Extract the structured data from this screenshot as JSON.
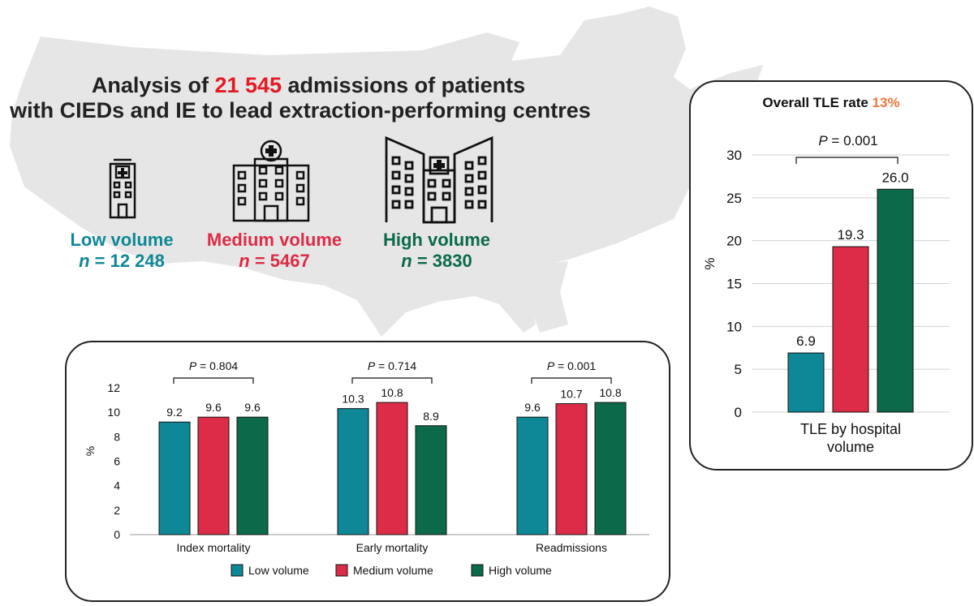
{
  "headline": {
    "line1_prefix": "Analysis of ",
    "line1_number": "21 545",
    "line1_suffix": " admissions of patients",
    "line2": "with CIEDs and IE to lead extraction-performing centres"
  },
  "groups": [
    {
      "label": "Low volume",
      "n_prefix": "n",
      "n_value": " = 12 248"
    },
    {
      "label": "Medium volume",
      "n_prefix": "n",
      "n_value": " = 5467"
    },
    {
      "label": "High volume",
      "n_prefix": "n",
      "n_value": " = 3830"
    }
  ],
  "colors": {
    "low": "#0e8896",
    "medium": "#dd2c47",
    "high": "#0c6a4b",
    "accent_red": "#e21b23",
    "accent_orange": "#e9783a",
    "map": "#e6e6e6"
  },
  "tle_panel": {
    "title_prefix": "Overall TLE rate ",
    "title_value": "13%"
  },
  "chart_data": [
    {
      "type": "bar",
      "title": "Overall TLE rate 13%",
      "categories": [
        "TLE by hospital volume"
      ],
      "category_lines": [
        "TLE by hospital",
        "volume"
      ],
      "series": [
        {
          "name": "Low volume",
          "values": [
            6.9
          ]
        },
        {
          "name": "Medium volume",
          "values": [
            19.3
          ]
        },
        {
          "name": "High volume",
          "values": [
            26.0
          ]
        }
      ],
      "value_labels": [
        "6.9",
        "19.3",
        "26.0"
      ],
      "ylabel": "%",
      "ylim": [
        0,
        30
      ],
      "yticks": [
        0,
        5,
        10,
        15,
        20,
        25,
        30
      ],
      "grid": true,
      "annotations": [
        {
          "text_italic": "P",
          "text": " = 0.001"
        }
      ]
    },
    {
      "type": "bar",
      "categories": [
        "Index mortality",
        "Early mortality",
        "Readmissions"
      ],
      "series": [
        {
          "name": "Low volume",
          "values": [
            9.2,
            10.3,
            9.6
          ]
        },
        {
          "name": "Medium volume",
          "values": [
            9.6,
            10.8,
            10.7
          ]
        },
        {
          "name": "High volume",
          "values": [
            9.6,
            8.9,
            10.8
          ]
        }
      ],
      "value_labels": [
        [
          "9.2",
          "10.3",
          "9.6"
        ],
        [
          "9.6",
          "10.8",
          "10.7"
        ],
        [
          "9.6",
          "8.9",
          "10.8"
        ]
      ],
      "ylabel": "%",
      "ylim": [
        0,
        12
      ],
      "yticks": [
        0,
        2,
        4,
        6,
        8,
        10,
        12
      ],
      "grid": false,
      "legend_position": "bottom",
      "annotations": [
        {
          "text_italic": "P",
          "text": " = 0.804"
        },
        {
          "text_italic": "P",
          "text": " = 0.714"
        },
        {
          "text_italic": "P",
          "text": " = 0.001"
        }
      ]
    }
  ]
}
